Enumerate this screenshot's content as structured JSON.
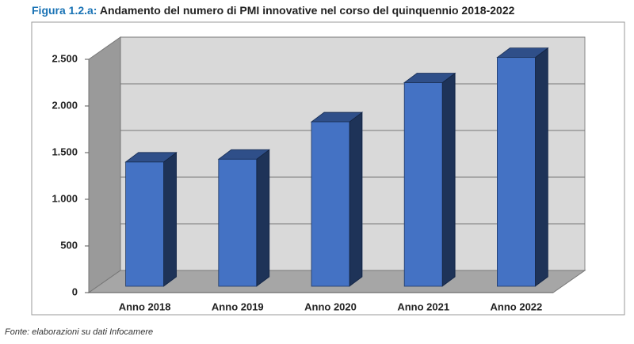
{
  "chart_data": {
    "type": "bar",
    "figure_label": "Figura 1.2.a:",
    "title": "Andamento del numero di PMI innovative nel corso del quinquennio 2018-2022",
    "source": "Fonte: elaborazioni su dati Infocamere",
    "categories": [
      "Anno 2018",
      "Anno 2019",
      "Anno 2020",
      "Anno 2021",
      "Anno 2022"
    ],
    "values": [
      1400,
      1430,
      1830,
      2250,
      2520
    ],
    "color": "#4472c4",
    "ylim": [
      0,
      2500
    ],
    "yticks": [
      0,
      500,
      {
        "value": 1000,
        "label": "1.000"
      },
      {
        "value": 1500,
        "label": "1.500"
      },
      {
        "value": 2000,
        "label": "2.000"
      },
      {
        "value": 2500,
        "label": "2.500"
      }
    ],
    "grid": true
  }
}
